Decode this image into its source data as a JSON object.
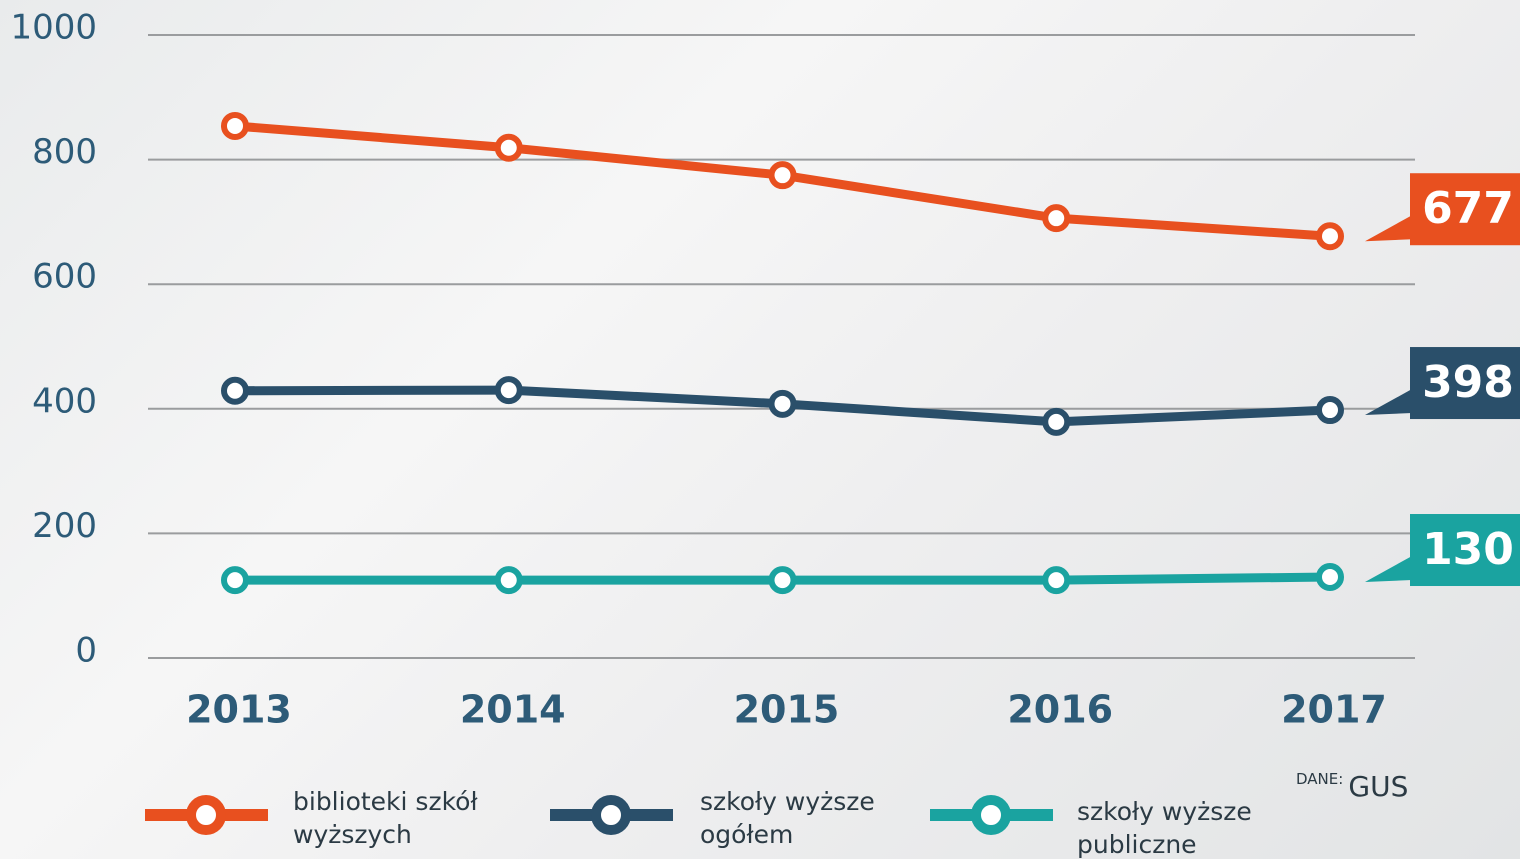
{
  "chart_data": {
    "type": "line",
    "categories": [
      "2013",
      "2014",
      "2015",
      "2016",
      "2017"
    ],
    "series": [
      {
        "name": "biblioteki szkół wyższych",
        "color": "#e8501f",
        "values": [
          854,
          819,
          775,
          706,
          677
        ]
      },
      {
        "name": "szkoły wyższe ogółem",
        "color": "#2a4f6a",
        "values": [
          429,
          430,
          408,
          379,
          398
        ]
      },
      {
        "name": "szkoły wyższe publiczne",
        "color": "#1aa3a0",
        "values": [
          125,
          125,
          125,
          125,
          130
        ]
      }
    ],
    "ylim": [
      0,
      1000
    ],
    "yticks": [
      0,
      200,
      400,
      600,
      800,
      1000
    ],
    "grid": true,
    "source": {
      "label": "DANE:",
      "text": "GUS"
    }
  }
}
